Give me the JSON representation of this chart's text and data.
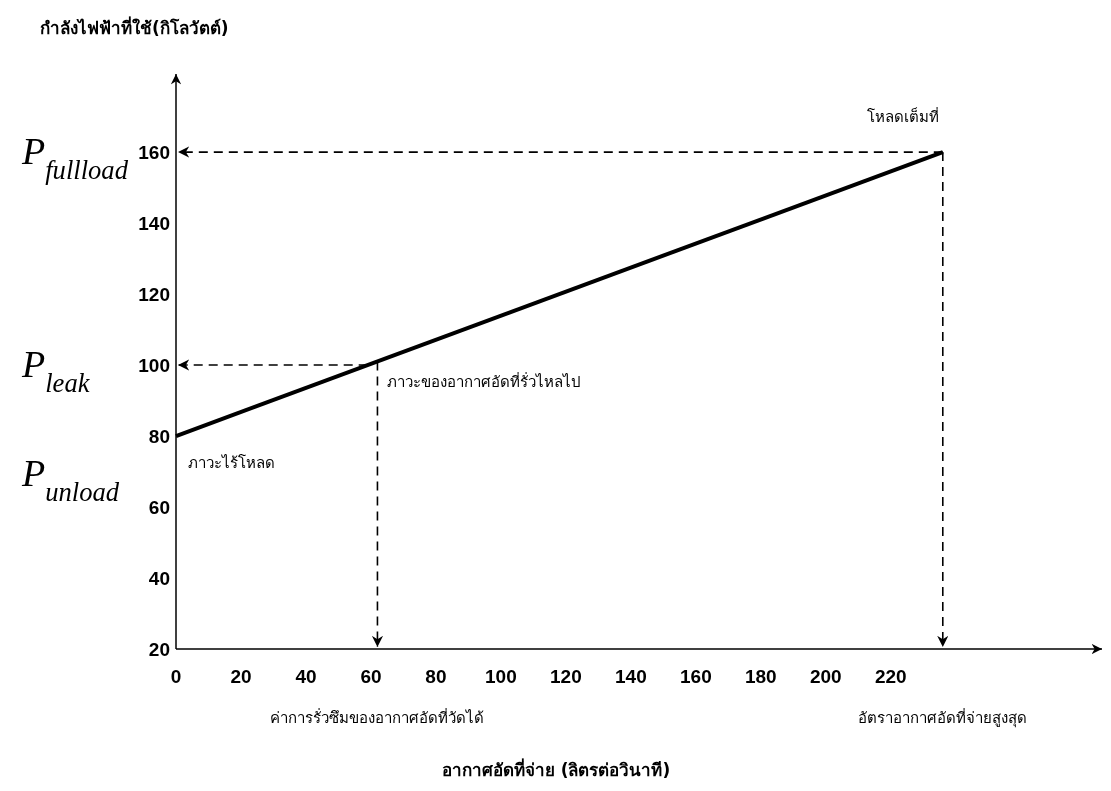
{
  "chart_data": {
    "type": "line",
    "xlabel": "อากาศอัดที่จ่าย (ลิตรต่อวินาที)",
    "ylabel": "กำลังไฟฟ้าที่ใช้(กิโลวัตต์)",
    "x": [
      0,
      236
    ],
    "series": [
      {
        "color": "#000000",
        "values": [
          80,
          160
        ]
      }
    ],
    "xlim": [
      0,
      285
    ],
    "ylim": [
      20,
      182
    ],
    "xticks": [
      0,
      20,
      40,
      60,
      80,
      100,
      120,
      140,
      160,
      180,
      200,
      220
    ],
    "yticks": [
      20,
      40,
      60,
      80,
      100,
      120,
      140,
      160
    ],
    "ref_lines": [
      {
        "axis": "y",
        "value": 160,
        "label": "P$_{fullload}$",
        "line_style": "dashed",
        "color": "#000000"
      },
      {
        "axis": "y",
        "value": 100,
        "label": "P$_{leak}$",
        "line_style": "dashed",
        "color": "#000000"
      },
      {
        "axis": "x",
        "value": 62,
        "line_style": "dashed",
        "color": "#000000"
      },
      {
        "axis": "x",
        "value": 236,
        "line_style": "dashed",
        "color": "#000000"
      }
    ],
    "annotations": [
      {
        "text": "P$_{unload}$",
        "x": 0,
        "y": 80
      },
      {
        "text": "ภาวะไร้โหลด",
        "x": 0,
        "y": 80
      },
      {
        "text": "ภาวะของอากาศอัดที่รั่วไหลไป",
        "x": 62,
        "y": 100
      },
      {
        "text": "โหลดเต็มที่",
        "x": 236,
        "y": 160
      },
      "ค่าการรั่วซึมของอากาศอัดที่วัดได้",
      "อัตราอากาศอัดที่จ่ายสูงสุด"
    ],
    "grid": false,
    "marker": "none",
    "line_style": "solid"
  }
}
